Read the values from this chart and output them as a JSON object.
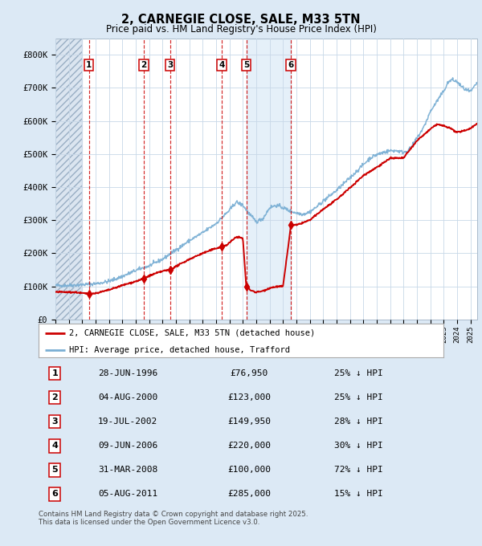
{
  "title": "2, CARNEGIE CLOSE, SALE, M33 5TN",
  "subtitle": "Price paid vs. HM Land Registry's House Price Index (HPI)",
  "sale_label": "2, CARNEGIE CLOSE, SALE, M33 5TN (detached house)",
  "hpi_label": "HPI: Average price, detached house, Trafford",
  "sale_color": "#cc0000",
  "hpi_color": "#7aafd4",
  "background_color": "#dce9f5",
  "plot_bg_color": "#ffffff",
  "grid_color": "#c8d8e8",
  "sale_points": [
    {
      "num": 1,
      "date": "28-JUN-1996",
      "year": 1996.49,
      "price": 76950
    },
    {
      "num": 2,
      "date": "04-AUG-2000",
      "year": 2000.59,
      "price": 123000
    },
    {
      "num": 3,
      "date": "19-JUL-2002",
      "year": 2002.55,
      "price": 149950
    },
    {
      "num": 4,
      "date": "09-JUN-2006",
      "year": 2006.44,
      "price": 220000
    },
    {
      "num": 5,
      "date": "31-MAR-2008",
      "year": 2008.25,
      "price": 100000
    },
    {
      "num": 6,
      "date": "05-AUG-2011",
      "year": 2011.59,
      "price": 285000
    }
  ],
  "hpi_discount": [
    {
      "num": 1,
      "pct": "25%",
      "dir": "↓"
    },
    {
      "num": 2,
      "pct": "25%",
      "dir": "↓"
    },
    {
      "num": 3,
      "pct": "28%",
      "dir": "↓"
    },
    {
      "num": 4,
      "pct": "30%",
      "dir": "↓"
    },
    {
      "num": 5,
      "pct": "72%",
      "dir": "↓"
    },
    {
      "num": 6,
      "pct": "15%",
      "dir": "↓"
    }
  ],
  "xmin": 1994.0,
  "xmax": 2025.5,
  "ymin": 0,
  "ymax": 850000,
  "yticks": [
    0,
    100000,
    200000,
    300000,
    400000,
    500000,
    600000,
    700000,
    800000
  ],
  "ylabel_fmt": [
    "£0",
    "£100K",
    "£200K",
    "£300K",
    "£400K",
    "£500K",
    "£600K",
    "£700K",
    "£800K"
  ],
  "footer": "Contains HM Land Registry data © Crown copyright and database right 2025.\nThis data is licensed under the Open Government Licence v3.0.",
  "hpi_anchors": [
    [
      1994.0,
      102000
    ],
    [
      1995.0,
      103000
    ],
    [
      1996.0,
      105000
    ],
    [
      1997.0,
      108000
    ],
    [
      1998.0,
      115000
    ],
    [
      1999.0,
      130000
    ],
    [
      2000.0,
      148000
    ],
    [
      2001.0,
      162000
    ],
    [
      2002.0,
      182000
    ],
    [
      2003.0,
      210000
    ],
    [
      2004.0,
      238000
    ],
    [
      2005.0,
      262000
    ],
    [
      2006.0,
      290000
    ],
    [
      2007.0,
      330000
    ],
    [
      2007.5,
      355000
    ],
    [
      2008.0,
      345000
    ],
    [
      2008.5,
      318000
    ],
    [
      2009.0,
      295000
    ],
    [
      2009.5,
      305000
    ],
    [
      2010.0,
      338000
    ],
    [
      2010.5,
      345000
    ],
    [
      2011.0,
      338000
    ],
    [
      2011.5,
      328000
    ],
    [
      2012.0,
      322000
    ],
    [
      2012.5,
      318000
    ],
    [
      2013.0,
      325000
    ],
    [
      2013.5,
      340000
    ],
    [
      2014.0,
      358000
    ],
    [
      2015.0,
      390000
    ],
    [
      2016.0,
      428000
    ],
    [
      2017.0,
      468000
    ],
    [
      2017.5,
      488000
    ],
    [
      2018.0,
      498000
    ],
    [
      2018.5,
      505000
    ],
    [
      2019.0,
      510000
    ],
    [
      2019.5,
      510000
    ],
    [
      2020.0,
      505000
    ],
    [
      2020.5,
      515000
    ],
    [
      2021.0,
      548000
    ],
    [
      2021.5,
      580000
    ],
    [
      2022.0,
      628000
    ],
    [
      2022.5,
      660000
    ],
    [
      2023.0,
      690000
    ],
    [
      2023.3,
      715000
    ],
    [
      2023.6,
      725000
    ],
    [
      2024.0,
      718000
    ],
    [
      2024.3,
      705000
    ],
    [
      2024.6,
      695000
    ],
    [
      2025.0,
      688000
    ],
    [
      2025.2,
      698000
    ],
    [
      2025.5,
      715000
    ]
  ],
  "sale_anchors": [
    [
      1994.0,
      83000
    ],
    [
      1995.5,
      82000
    ],
    [
      1996.49,
      76950
    ],
    [
      1997.0,
      79000
    ],
    [
      1998.0,
      89000
    ],
    [
      1999.0,
      103000
    ],
    [
      2000.0,
      115000
    ],
    [
      2000.59,
      123000
    ],
    [
      2001.0,
      132000
    ],
    [
      2002.0,
      146000
    ],
    [
      2002.55,
      149950
    ],
    [
      2003.0,
      160000
    ],
    [
      2004.0,
      182000
    ],
    [
      2005.0,
      200000
    ],
    [
      2006.0,
      215000
    ],
    [
      2006.44,
      220000
    ],
    [
      2006.8,
      225000
    ],
    [
      2007.0,
      232000
    ],
    [
      2007.3,
      242000
    ],
    [
      2007.5,
      250000
    ],
    [
      2008.0,
      245000
    ],
    [
      2008.25,
      100000
    ],
    [
      2008.6,
      88000
    ],
    [
      2009.0,
      82000
    ],
    [
      2009.5,
      86000
    ],
    [
      2010.0,
      95000
    ],
    [
      2010.5,
      99000
    ],
    [
      2011.0,
      100000
    ],
    [
      2011.59,
      285000
    ],
    [
      2012.0,
      285000
    ],
    [
      2013.0,
      300000
    ],
    [
      2014.0,
      333000
    ],
    [
      2015.0,
      362000
    ],
    [
      2016.0,
      398000
    ],
    [
      2017.0,
      435000
    ],
    [
      2018.0,
      460000
    ],
    [
      2019.0,
      487000
    ],
    [
      2020.0,
      488000
    ],
    [
      2021.0,
      540000
    ],
    [
      2022.0,
      575000
    ],
    [
      2022.5,
      590000
    ],
    [
      2023.0,
      585000
    ],
    [
      2023.5,
      578000
    ],
    [
      2024.0,
      565000
    ],
    [
      2024.5,
      570000
    ],
    [
      2025.0,
      578000
    ],
    [
      2025.5,
      592000
    ]
  ]
}
